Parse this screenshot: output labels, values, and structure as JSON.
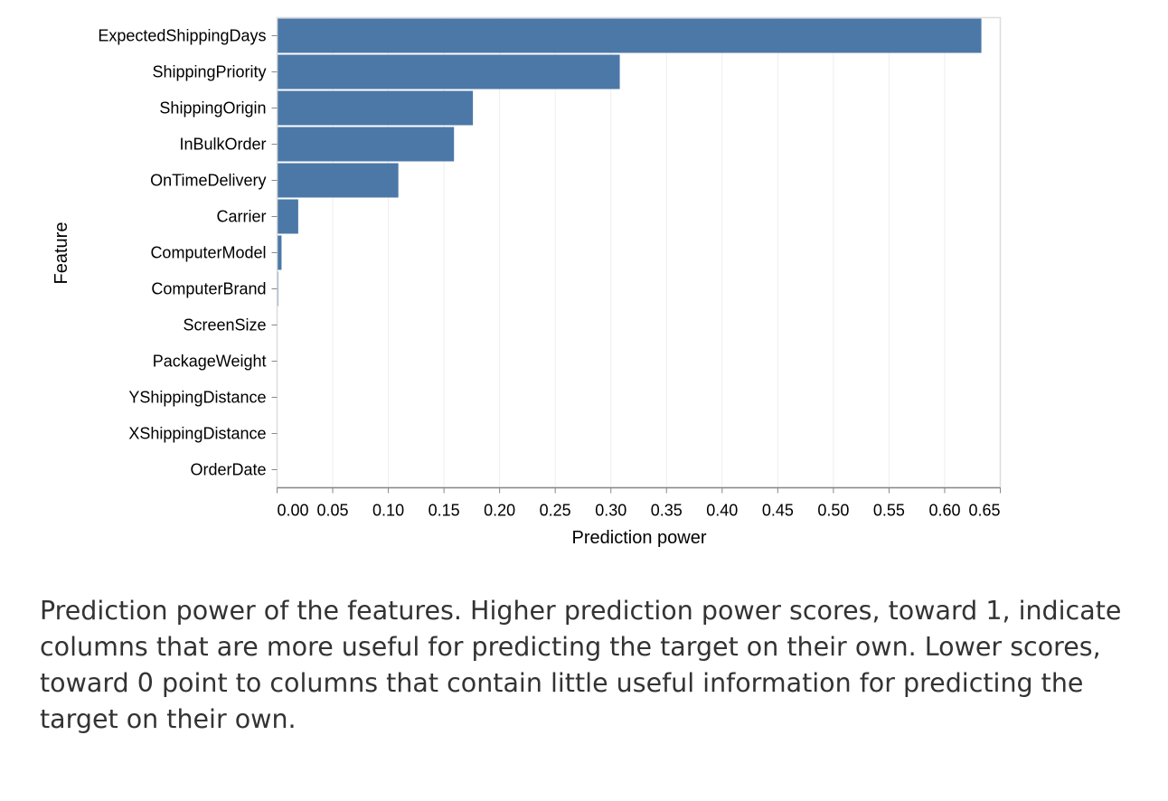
{
  "chart_data": {
    "type": "bar",
    "orientation": "horizontal",
    "ylabel": "Feature",
    "xlabel": "Prediction power",
    "categories": [
      "ExpectedShippingDays",
      "ShippingPriority",
      "ShippingOrigin",
      "InBulkOrder",
      "OnTimeDelivery",
      "Carrier",
      "ComputerModel",
      "ComputerBrand",
      "ScreenSize",
      "PackageWeight",
      "YShippingDistance",
      "XShippingDistance",
      "OrderDate"
    ],
    "values": [
      0.633,
      0.308,
      0.176,
      0.159,
      0.109,
      0.019,
      0.004,
      0.001,
      0,
      0,
      0,
      0,
      0
    ],
    "xlim": [
      0,
      0.65
    ],
    "xticks": [
      0,
      0.05,
      0.1,
      0.15,
      0.2,
      0.25,
      0.3,
      0.35,
      0.4,
      0.45,
      0.5,
      0.55,
      0.6,
      0.65
    ],
    "xtick_labels": [
      "0.00",
      "0.05",
      "0.10",
      "0.15",
      "0.20",
      "0.25",
      "0.30",
      "0.35",
      "0.40",
      "0.45",
      "0.50",
      "0.55",
      "0.60",
      "0.65"
    ],
    "grid": true,
    "bar_color": "#4c78a8"
  },
  "caption": "Prediction power of the features. Higher prediction power scores, toward 1, indicate columns that are more useful for predicting the target on their own. Lower scores, toward 0 point to columns that contain little useful information for predicting the target on their own."
}
